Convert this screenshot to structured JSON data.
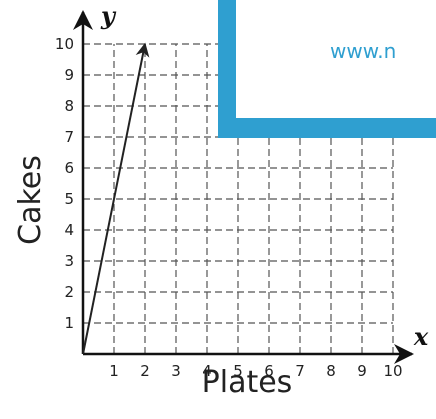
{
  "chart_data": {
    "type": "line",
    "xlabel": "Plates",
    "ylabel": "Cakes",
    "x_axis_var": "x",
    "y_axis_var": "y",
    "xlim": [
      0,
      10
    ],
    "ylim": [
      0,
      10
    ],
    "x_ticks": [
      "1",
      "2",
      "3",
      "4",
      "5",
      "6",
      "7",
      "8",
      "9",
      "10"
    ],
    "y_ticks": [
      "1",
      "2",
      "3",
      "4",
      "5",
      "6",
      "7",
      "8",
      "9",
      "10"
    ],
    "grid": true,
    "grid_style": "dashed",
    "series": [
      {
        "x": [
          0,
          2
        ],
        "y": [
          0,
          10
        ],
        "arrow_end": true,
        "color": "#222222"
      }
    ]
  },
  "watermark": {
    "text": "www.n",
    "color": "#2f9fd0"
  }
}
